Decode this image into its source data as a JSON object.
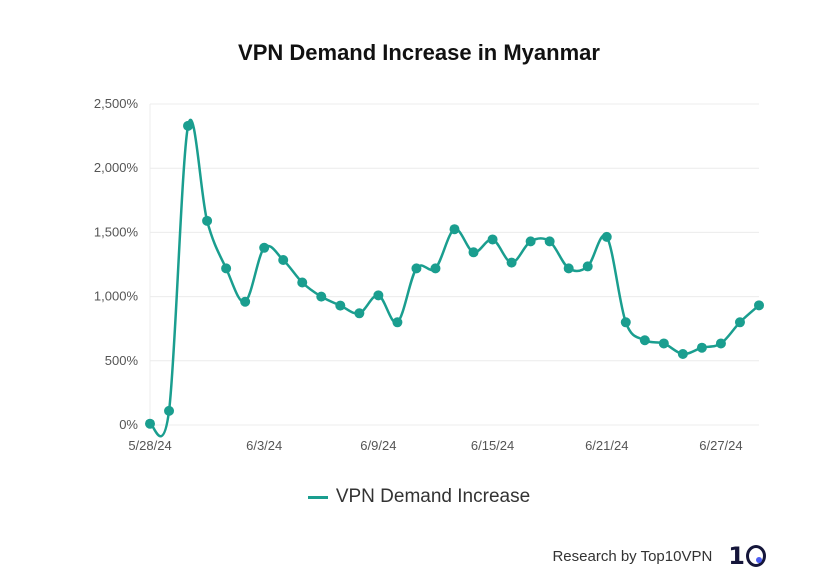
{
  "chart_data": {
    "type": "line",
    "title": "VPN Demand Increase in Myanmar",
    "xlabel": "",
    "ylabel": "",
    "ylim": [
      0,
      2500
    ],
    "yticks": [
      0,
      500,
      1000,
      1500,
      2000,
      2500
    ],
    "ytick_labels": [
      "0%",
      "500%",
      "1,000%",
      "1,500%",
      "2,000%",
      "2,500%"
    ],
    "xtick_labels": [
      {
        "index": 0,
        "label": "5/28/24"
      },
      {
        "index": 6,
        "label": "6/3/24"
      },
      {
        "index": 12,
        "label": "6/9/24"
      },
      {
        "index": 18,
        "label": "6/15/24"
      },
      {
        "index": 24,
        "label": "6/21/24"
      },
      {
        "index": 30,
        "label": "6/27/24"
      }
    ],
    "grid": true,
    "legend_position": "bottom-center",
    "x": [
      "5/28/24",
      "5/29/24",
      "5/30/24",
      "5/31/24",
      "6/1/24",
      "6/2/24",
      "6/3/24",
      "6/4/24",
      "6/5/24",
      "6/6/24",
      "6/7/24",
      "6/8/24",
      "6/9/24",
      "6/10/24",
      "6/11/24",
      "6/12/24",
      "6/13/24",
      "6/14/24",
      "6/15/24",
      "6/16/24",
      "6/17/24",
      "6/18/24",
      "6/19/24",
      "6/20/24",
      "6/21/24",
      "6/22/24",
      "6/23/24",
      "6/24/24",
      "6/25/24",
      "6/26/24",
      "6/27/24",
      "6/28/24",
      "6/29/24"
    ],
    "series": [
      {
        "name": "VPN Demand Increase",
        "color": "#1a9e8f",
        "values": [
          10,
          110,
          2330,
          1590,
          1220,
          960,
          1380,
          1285,
          1110,
          1000,
          930,
          870,
          1010,
          800,
          1220,
          1220,
          1525,
          1345,
          1445,
          1265,
          1430,
          1430,
          1220,
          1235,
          1465,
          800,
          660,
          635,
          553,
          602,
          635,
          800,
          932
        ]
      }
    ]
  },
  "legend": {
    "label": "VPN Demand Increase"
  },
  "footer": {
    "text": "Research by Top10VPN",
    "logo_text": "1"
  }
}
